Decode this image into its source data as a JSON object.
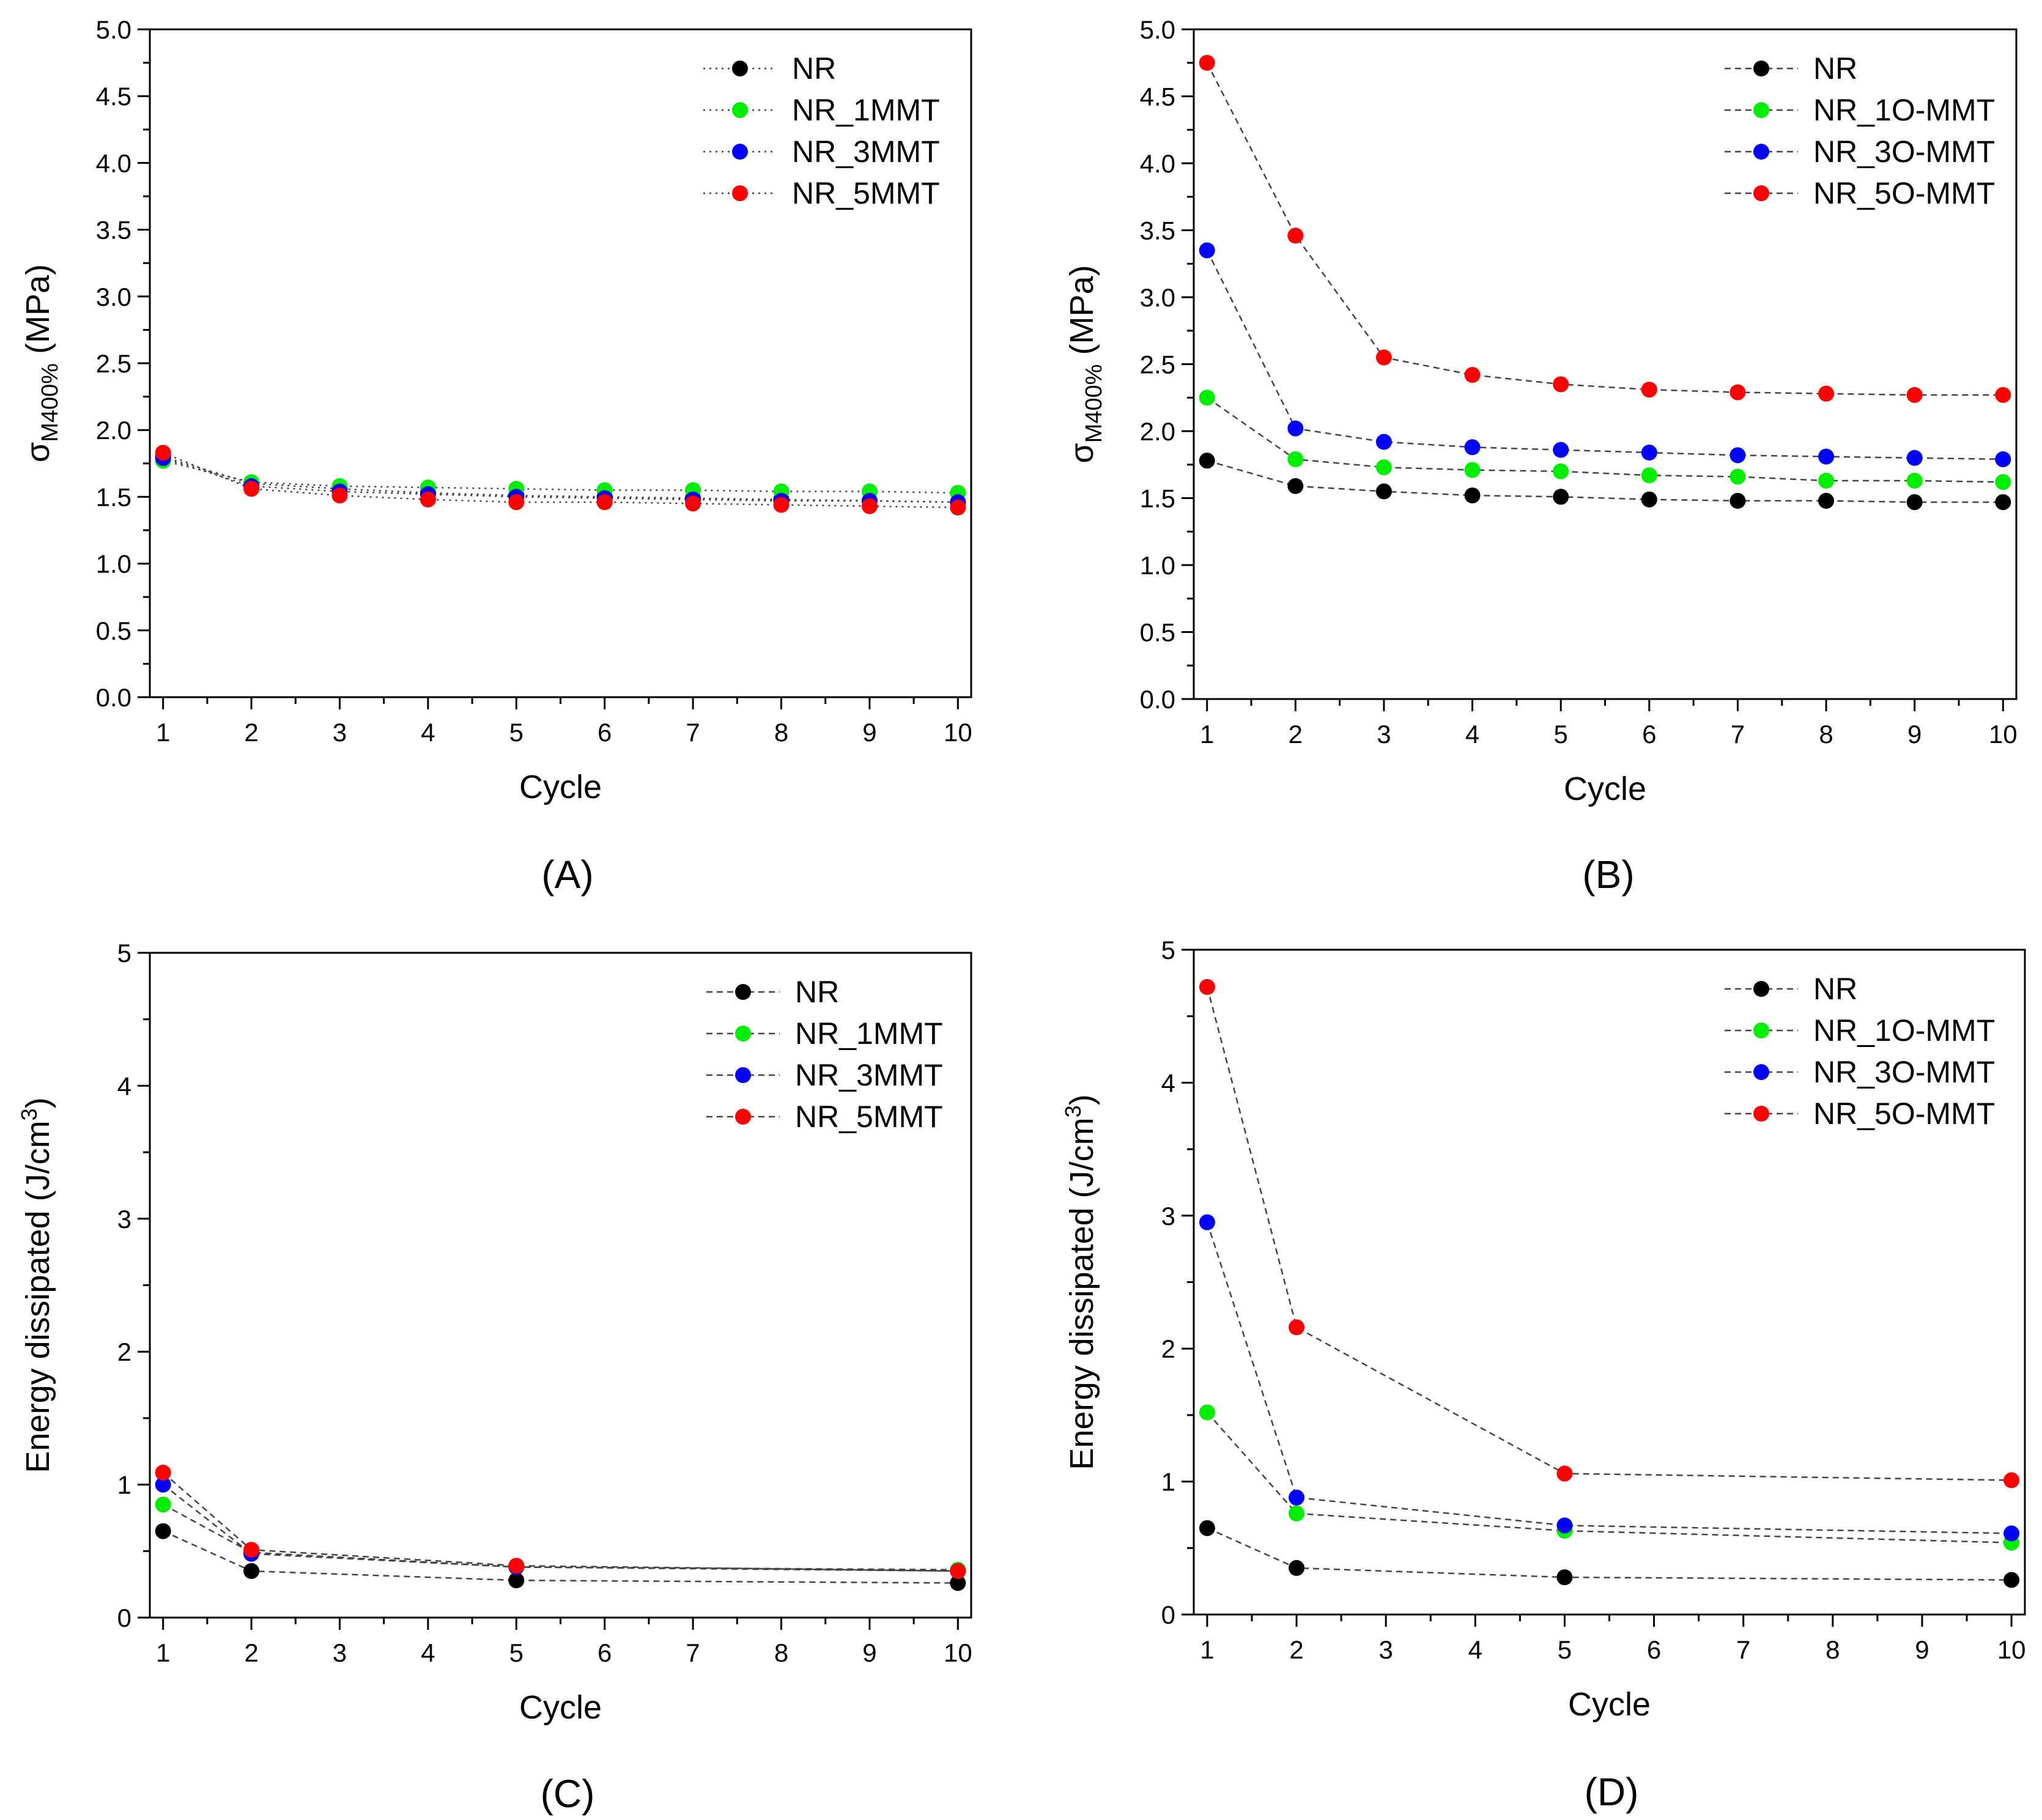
{
  "chart_data": [
    {
      "panel": "(A)",
      "type": "scatter",
      "line_style": "dotted",
      "ylabel": "σM400% (MPa)",
      "ylabel_main": "σ",
      "ylabel_sub": "M400%",
      "ylabel_tail": " (MPa)",
      "xlabel": "Cycle",
      "xlim": [
        0.85,
        10.15
      ],
      "ylim": [
        0,
        5
      ],
      "xticks": [
        "1",
        "2",
        "3",
        "4",
        "5",
        "6",
        "7",
        "8",
        "9",
        "10"
      ],
      "yticks": [
        "0.0",
        "0.5",
        "1.0",
        "1.5",
        "2.0",
        "2.5",
        "3.0",
        "3.5",
        "4.0",
        "4.5",
        "5.0"
      ],
      "grid": false,
      "legend_position": "top-right",
      "x": [
        1,
        2,
        3,
        4,
        5,
        6,
        7,
        8,
        9,
        10
      ],
      "series": [
        {
          "name": "NR",
          "color": "#000000",
          "values": [
            1.8,
            1.6,
            1.56,
            1.53,
            1.51,
            1.5,
            1.49,
            1.48,
            1.47,
            1.46
          ]
        },
        {
          "name": "NR_1MMT",
          "color": "#00ee00",
          "values": [
            1.77,
            1.61,
            1.58,
            1.57,
            1.56,
            1.55,
            1.55,
            1.54,
            1.54,
            1.53
          ]
        },
        {
          "name": "NR_3MMT",
          "color": "#0000ff",
          "values": [
            1.79,
            1.58,
            1.54,
            1.52,
            1.5,
            1.49,
            1.48,
            1.47,
            1.47,
            1.46
          ]
        },
        {
          "name": "NR_5MMT",
          "color": "#ff0000",
          "values": [
            1.83,
            1.56,
            1.51,
            1.48,
            1.46,
            1.46,
            1.45,
            1.44,
            1.43,
            1.42
          ]
        }
      ]
    },
    {
      "panel": "(B)",
      "type": "scatter",
      "line_style": "dashed",
      "ylabel": "σM400% (MPa)",
      "ylabel_main": "σ",
      "ylabel_sub": "M400%",
      "ylabel_tail": " (MPa)",
      "xlabel": "Cycle",
      "xlim": [
        0.85,
        10.15
      ],
      "ylim": [
        0,
        5
      ],
      "xticks": [
        "1",
        "2",
        "3",
        "4",
        "5",
        "6",
        "7",
        "8",
        "9",
        "10"
      ],
      "yticks": [
        "0.0",
        "0.5",
        "1.0",
        "1.5",
        "2.0",
        "2.5",
        "3.0",
        "3.5",
        "4.0",
        "4.5",
        "5.0"
      ],
      "grid": false,
      "legend_position": "top-right",
      "x": [
        1,
        2,
        3,
        4,
        5,
        6,
        7,
        8,
        9,
        10
      ],
      "series": [
        {
          "name": "NR",
          "color": "#000000",
          "values": [
            1.78,
            1.59,
            1.55,
            1.52,
            1.51,
            1.49,
            1.48,
            1.48,
            1.47,
            1.47
          ]
        },
        {
          "name": "NR_1O-MMT",
          "color": "#00ee00",
          "values": [
            2.25,
            1.79,
            1.73,
            1.71,
            1.7,
            1.67,
            1.66,
            1.63,
            1.63,
            1.62
          ]
        },
        {
          "name": "NR_3O-MMT",
          "color": "#0000ff",
          "values": [
            3.35,
            2.02,
            1.92,
            1.88,
            1.86,
            1.84,
            1.82,
            1.81,
            1.8,
            1.79
          ]
        },
        {
          "name": "NR_5O-MMT",
          "color": "#ff0000",
          "values": [
            4.75,
            3.46,
            2.55,
            2.42,
            2.35,
            2.31,
            2.29,
            2.28,
            2.27,
            2.27
          ]
        }
      ]
    },
    {
      "panel": "(C)",
      "type": "scatter",
      "line_style": "dashed",
      "ylabel": "Energy dissipated (J/cm3)",
      "ylabel_main": "Energy dissipated (J/cm",
      "ylabel_sup": "3",
      "ylabel_tail": ")",
      "xlabel": "Cycle",
      "xlim": [
        0.85,
        10.15
      ],
      "ylim": [
        0,
        5
      ],
      "xticks": [
        "1",
        "2",
        "3",
        "4",
        "5",
        "6",
        "7",
        "8",
        "9",
        "10"
      ],
      "yticks": [
        "0",
        "1",
        "2",
        "3",
        "4",
        "5"
      ],
      "grid": false,
      "legend_position": "top-right",
      "x": [
        1,
        2,
        5,
        10
      ],
      "series": [
        {
          "name": "NR",
          "color": "#000000",
          "values": [
            0.65,
            0.35,
            0.28,
            0.26
          ]
        },
        {
          "name": "NR_1MMT",
          "color": "#00ee00",
          "values": [
            0.85,
            0.49,
            0.38,
            0.36
          ]
        },
        {
          "name": "NR_3MMT",
          "color": "#0000ff",
          "values": [
            1.0,
            0.48,
            0.38,
            0.35
          ]
        },
        {
          "name": "NR_5MMT",
          "color": "#ff0000",
          "values": [
            1.09,
            0.51,
            0.39,
            0.35
          ]
        }
      ]
    },
    {
      "panel": "(D)",
      "type": "scatter",
      "line_style": "dashed",
      "ylabel": "Energy dissipated (J/cm3)",
      "ylabel_main": "Energy dissipated (J/cm",
      "ylabel_sup": "3",
      "ylabel_tail": ")",
      "xlabel": "Cycle",
      "xlim": [
        0.85,
        10.15
      ],
      "ylim": [
        0,
        5
      ],
      "xticks": [
        "1",
        "2",
        "3",
        "4",
        "5",
        "6",
        "7",
        "8",
        "9",
        "10"
      ],
      "yticks": [
        "0",
        "1",
        "2",
        "3",
        "4",
        "5"
      ],
      "grid": false,
      "legend_position": "top-right",
      "x": [
        1,
        2,
        5,
        10
      ],
      "series": [
        {
          "name": "NR",
          "color": "#000000",
          "values": [
            0.65,
            0.35,
            0.28,
            0.26
          ]
        },
        {
          "name": "NR_1O-MMT",
          "color": "#00ee00",
          "values": [
            1.52,
            0.76,
            0.63,
            0.54
          ]
        },
        {
          "name": "NR_3O-MMT",
          "color": "#0000ff",
          "values": [
            2.95,
            0.88,
            0.67,
            0.61
          ]
        },
        {
          "name": "NR_5O-MMT",
          "color": "#ff0000",
          "values": [
            4.72,
            2.16,
            1.06,
            1.01
          ]
        }
      ]
    }
  ]
}
